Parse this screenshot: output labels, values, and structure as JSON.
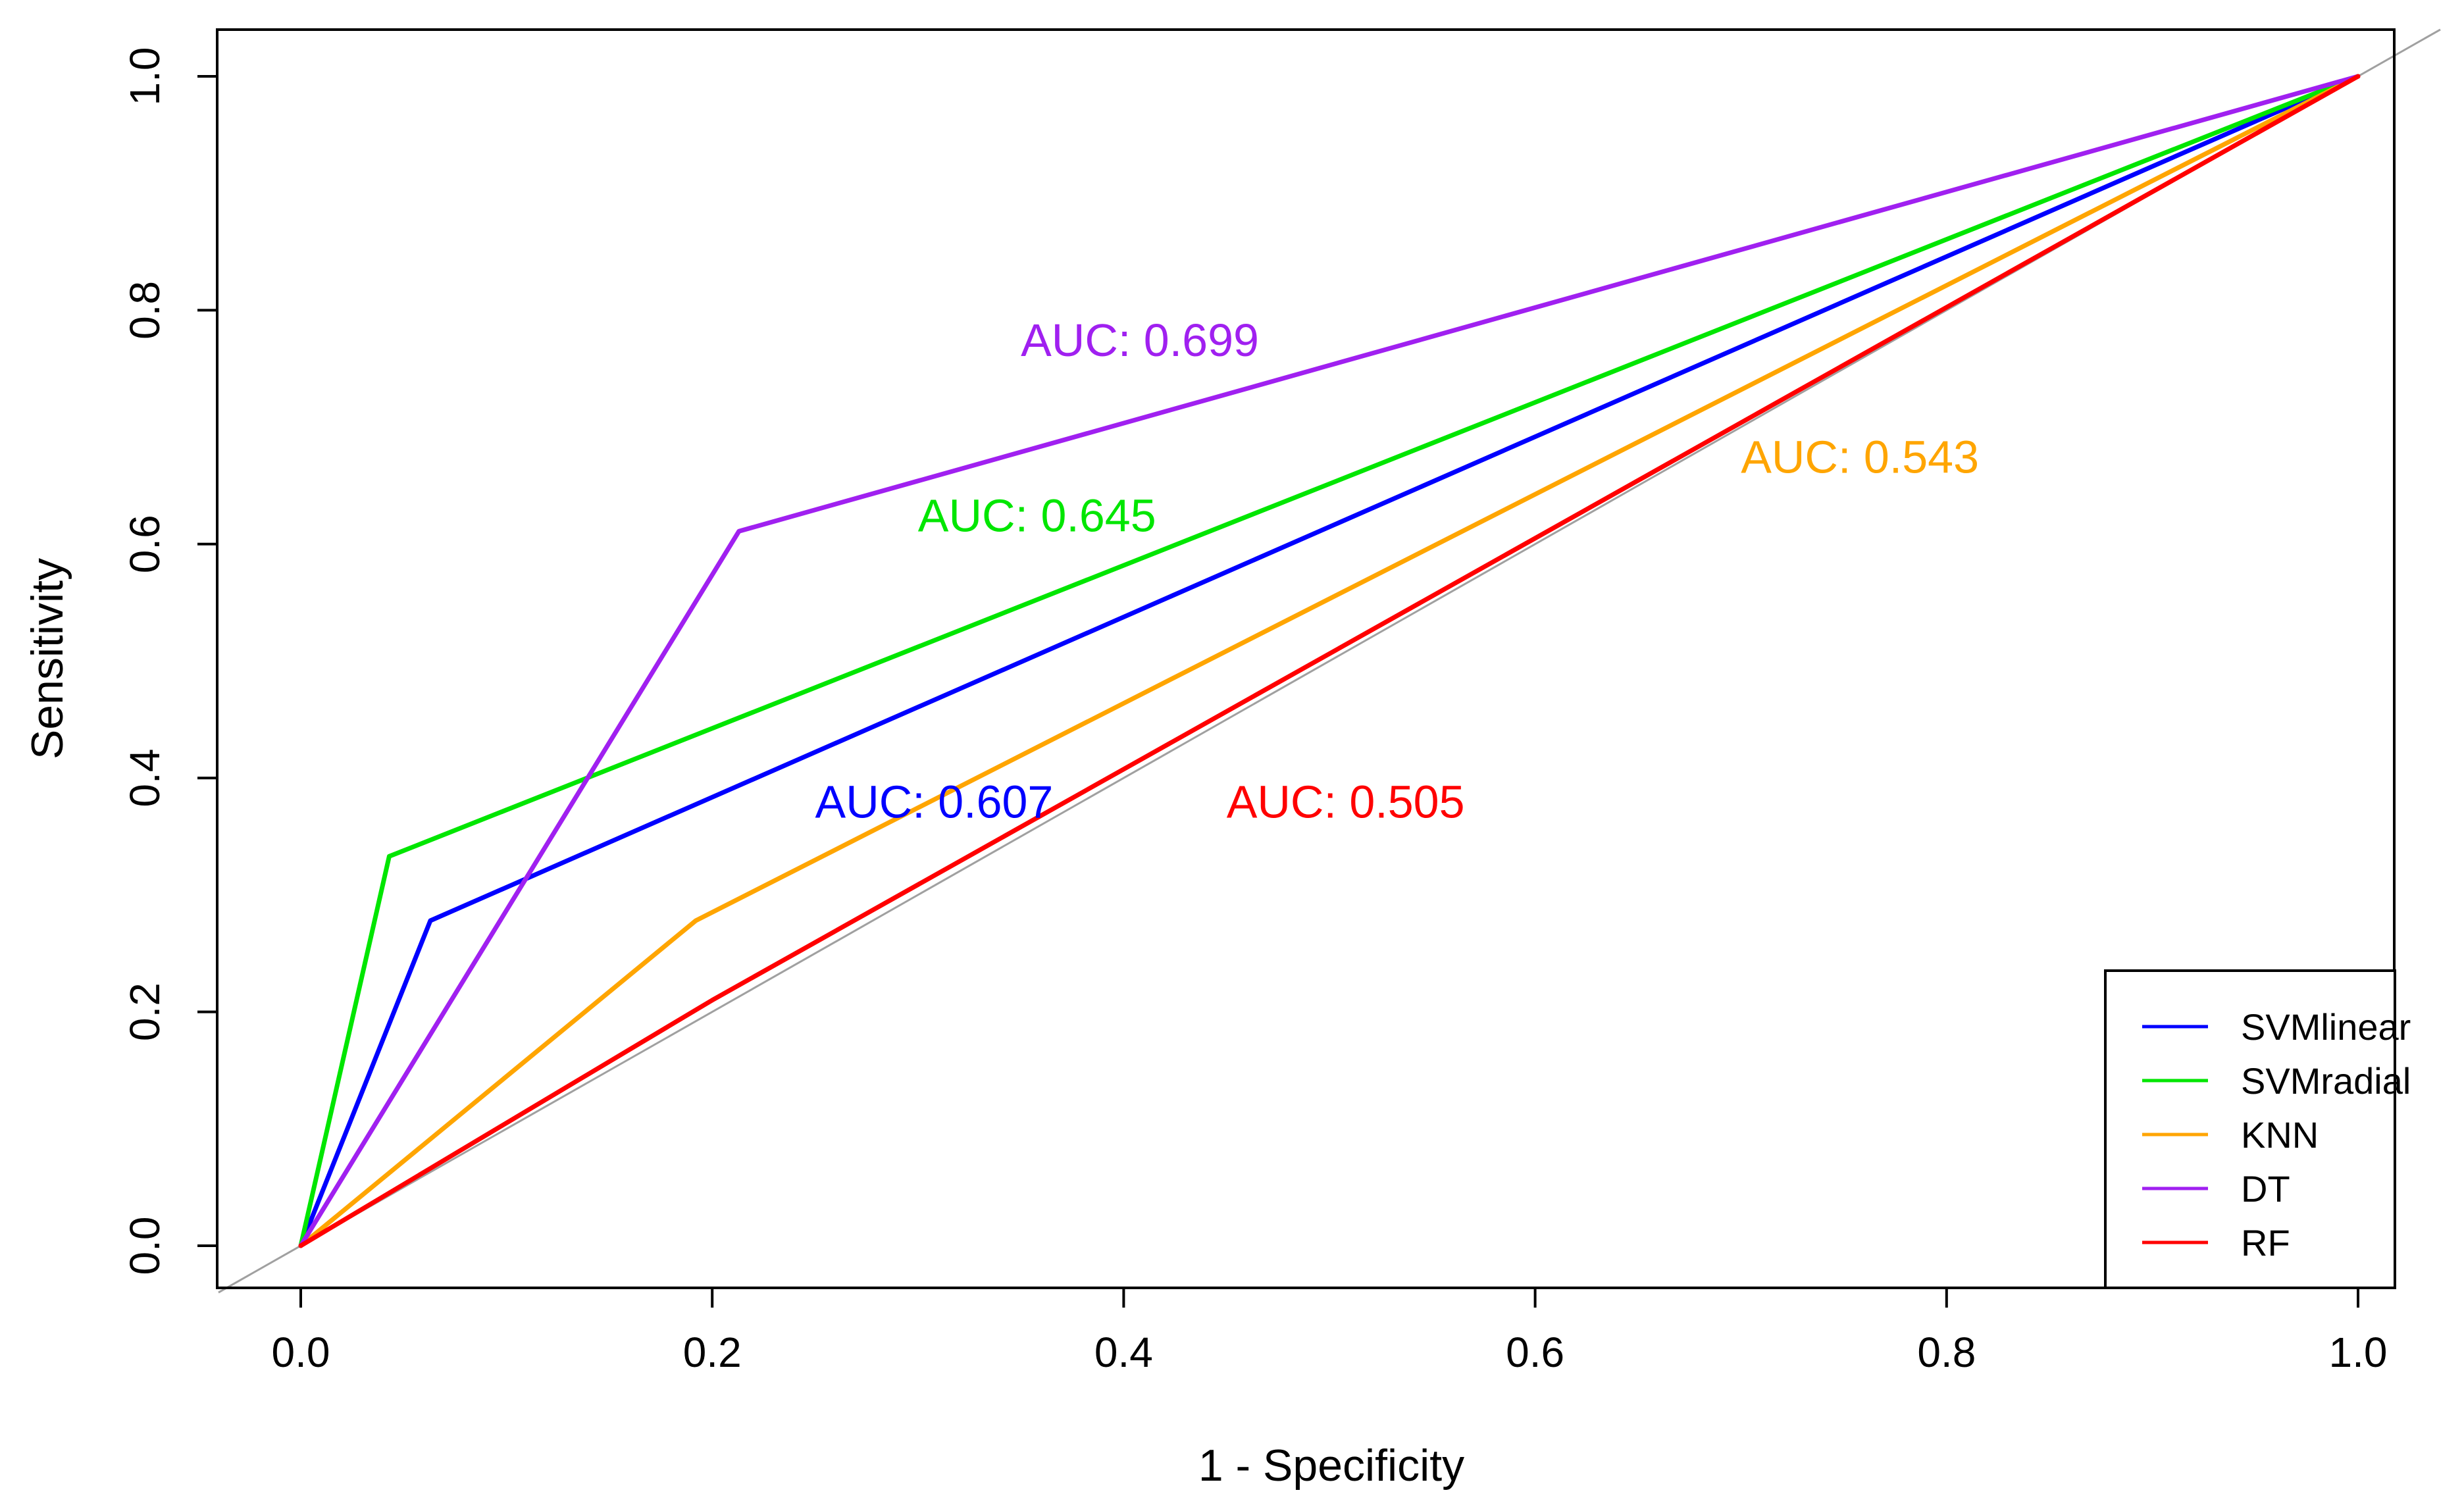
{
  "chart_data": {
    "type": "line",
    "title": "",
    "xlabel": "1 - Specificity",
    "ylabel": "Sensitivity",
    "xlim": [
      -0.04,
      1.04
    ],
    "ylim": [
      -0.04,
      1.04
    ],
    "xticks": [
      0.0,
      0.2,
      0.4,
      0.6,
      0.8,
      1.0
    ],
    "yticks": [
      0.0,
      0.2,
      0.4,
      0.6,
      0.8,
      1.0
    ],
    "xtick_labels": [
      "0.0",
      "0.2",
      "0.4",
      "0.6",
      "0.8",
      "1.0"
    ],
    "ytick_labels": [
      "0.0",
      "0.2",
      "0.4",
      "0.6",
      "0.8",
      "1.0"
    ],
    "grid": false,
    "legend_position": "bottom-right",
    "reference_line": {
      "x": [
        0,
        1
      ],
      "y": [
        0,
        1
      ],
      "color": "#a0a0a0"
    },
    "series": [
      {
        "name": "SVMlinear",
        "color": "#0000ff",
        "x": [
          0,
          0.063,
          1
        ],
        "y": [
          0,
          0.278,
          1
        ],
        "auc_label": "AUC: 0.607",
        "auc_at": [
          0.25,
          0.38
        ]
      },
      {
        "name": "SVMradial",
        "color": "#00e600",
        "x": [
          0,
          0.043,
          1
        ],
        "y": [
          0,
          0.333,
          1
        ],
        "auc_label": "AUC: 0.645",
        "auc_at": [
          0.3,
          0.625
        ]
      },
      {
        "name": "KNN",
        "color": "#ffa500",
        "x": [
          0,
          0.192,
          1
        ],
        "y": [
          0,
          0.278,
          1
        ],
        "auc_label": "AUC: 0.543",
        "auc_at": [
          0.7,
          0.675
        ]
      },
      {
        "name": "DT",
        "color": "#a020f0",
        "x": [
          0,
          0.213,
          1
        ],
        "y": [
          0,
          0.611,
          1
        ],
        "auc_label": "AUC: 0.699",
        "auc_at": [
          0.35,
          0.775
        ]
      },
      {
        "name": "RF",
        "color": "#ff0000",
        "x": [
          0,
          0.2,
          1
        ],
        "y": [
          0,
          0.21,
          1
        ],
        "auc_label": "AUC: 0.505",
        "auc_at": [
          0.45,
          0.38
        ]
      }
    ]
  }
}
